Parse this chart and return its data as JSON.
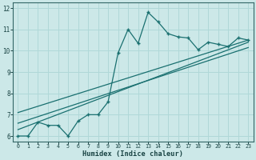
{
  "xlabel": "Humidex (Indice chaleur)",
  "bg_color": "#cce8e8",
  "grid_color": "#b0d8d8",
  "line_color": "#1a7070",
  "xlim": [
    0,
    23
  ],
  "ylim": [
    5.75,
    12.25
  ],
  "x_ticks": [
    0,
    1,
    2,
    3,
    4,
    5,
    6,
    7,
    8,
    9,
    10,
    11,
    12,
    13,
    14,
    15,
    16,
    17,
    18,
    19,
    20,
    21,
    22,
    23
  ],
  "y_ticks": [
    6,
    7,
    8,
    9,
    10,
    11,
    12
  ],
  "main_x": [
    0,
    1,
    2,
    3,
    4,
    5,
    6,
    7,
    8,
    9,
    10,
    11,
    12,
    13,
    14,
    15,
    16,
    17,
    18,
    19,
    20,
    21,
    22,
    23
  ],
  "main_y": [
    6.0,
    6.0,
    6.65,
    6.5,
    6.5,
    6.0,
    6.7,
    7.0,
    7.0,
    7.6,
    9.9,
    11.0,
    10.35,
    11.8,
    11.35,
    10.8,
    10.65,
    10.6,
    10.05,
    10.4,
    10.3,
    10.2,
    10.6,
    10.5
  ],
  "line1_x": [
    0,
    23
  ],
  "line1_y": [
    6.3,
    10.4
  ],
  "line2_x": [
    0,
    23
  ],
  "line2_y": [
    6.6,
    10.15
  ],
  "line3_x": [
    0,
    23
  ],
  "line3_y": [
    7.1,
    10.5
  ]
}
